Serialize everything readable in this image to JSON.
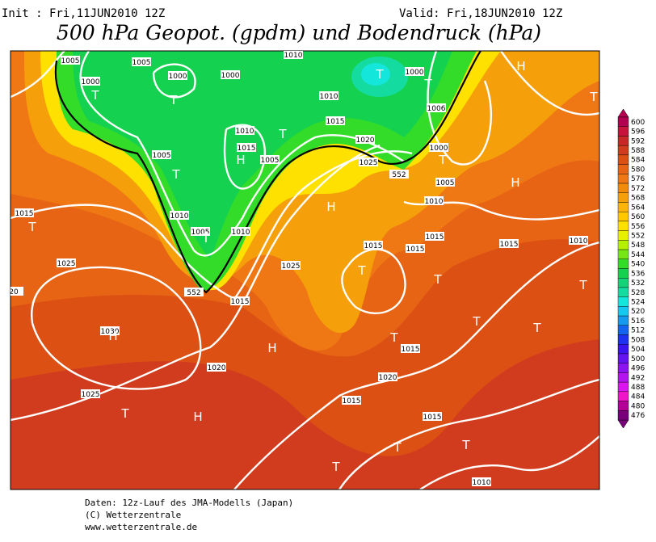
{
  "header": {
    "init": "Init : Fri,11JUN2010 12Z",
    "valid": "Valid: Fri,18JUN2010 12Z",
    "title": "500 hPa Geopot. (gpdm) und Bodendruck (hPa)"
  },
  "map": {
    "isobar_labels": [
      1005,
      1005,
      1010,
      1000,
      1000,
      1000,
      1000,
      1010,
      1006,
      1015,
      1010,
      1020,
      1015,
      1005,
      1005,
      1000,
      1025,
      1005,
      1010,
      1015,
      1010,
      1005,
      1010,
      1025,
      1015,
      1015,
      1015,
      1015,
      1010,
      552,
      552,
      1015,
      1025,
      1030,
      1020,
      1015,
      1020,
      1025,
      1015,
      1015,
      1010,
      20
    ],
    "pressure_centers": [
      "T",
      "T",
      "T",
      "T",
      "H",
      "T",
      "H",
      "T",
      "T",
      "T",
      "H",
      "H",
      "T",
      "T",
      "T",
      "T",
      "T",
      "T",
      "T",
      "T",
      "H",
      "H",
      "T",
      "H",
      "T",
      "T",
      "T"
    ]
  },
  "colorbar": {
    "levels": [
      600,
      596,
      592,
      588,
      584,
      580,
      576,
      572,
      568,
      564,
      560,
      556,
      552,
      548,
      544,
      540,
      536,
      532,
      528,
      524,
      520,
      516,
      512,
      508,
      504,
      500,
      496,
      492,
      488,
      484,
      480,
      476
    ],
    "colors": [
      "#b40050",
      "#c8143c",
      "#c82828",
      "#d23c1e",
      "#dc5014",
      "#e66414",
      "#f07814",
      "#f08c0a",
      "#f5a00a",
      "#fab40a",
      "#ffc800",
      "#ffe100",
      "#e6f000",
      "#b4f000",
      "#78e614",
      "#32dc28",
      "#14d250",
      "#14d278",
      "#14dca0",
      "#14e6dc",
      "#14c8f0",
      "#149bf0",
      "#1464f0",
      "#1e32f0",
      "#3c14f0",
      "#6414f0",
      "#8c14f0",
      "#b414f0",
      "#dc14f0",
      "#f014c8",
      "#b40096",
      "#780078"
    ]
  },
  "footer": {
    "lines": [
      "Daten: 12z-Lauf des JMA-Modells (Japan)",
      "(C) Wetterzentrale",
      "www.wetterzentrale.de"
    ]
  }
}
